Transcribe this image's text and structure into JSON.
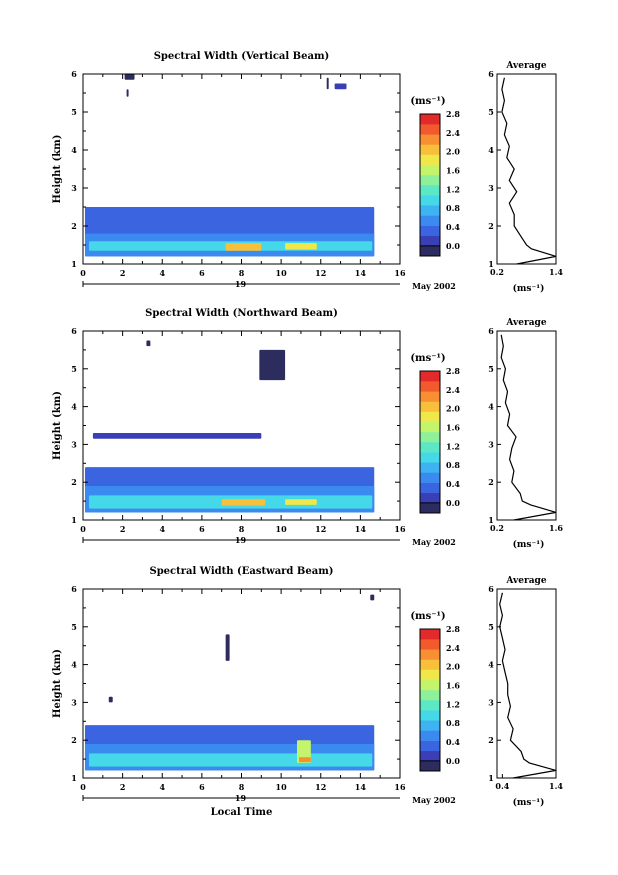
{
  "chart_data": [
    {
      "type": "heatmap",
      "title": "Spectral Width (Vertical Beam)",
      "xlabel": "",
      "ylabel": "Height (km)",
      "x_ticks": [
        0,
        2,
        4,
        6,
        8,
        10,
        12,
        14,
        16
      ],
      "y_ticks": [
        1,
        2,
        3,
        4,
        5,
        6
      ],
      "xlim": [
        0,
        16
      ],
      "ylim": [
        1,
        6
      ],
      "date_marker": "19",
      "date_label": "May 2002",
      "colorbar": {
        "unit_label": "(ms⁻¹)",
        "ticks": [
          "0.0",
          "0.4",
          "0.8",
          "1.2",
          "1.6",
          "2.0",
          "2.4",
          "2.8"
        ],
        "range": [
          0,
          3.0
        ]
      },
      "blocks": [
        {
          "x0": 0.1,
          "x1": 14.7,
          "y0": 1.2,
          "y1": 2.5,
          "v": 0.55
        },
        {
          "x0": 0.1,
          "x1": 14.7,
          "y0": 1.2,
          "y1": 1.8,
          "v": 0.85
        },
        {
          "x0": 0.3,
          "x1": 14.6,
          "y0": 1.35,
          "y1": 1.6,
          "v": 1.2
        },
        {
          "x0": 7.2,
          "x1": 9.0,
          "y0": 1.35,
          "y1": 1.55,
          "v": 2.3
        },
        {
          "x0": 10.2,
          "x1": 11.8,
          "y0": 1.38,
          "y1": 1.55,
          "v": 2.0
        },
        {
          "x0": 2.1,
          "x1": 2.6,
          "y0": 5.85,
          "y1": 6.0,
          "v": 0.2
        },
        {
          "x0": 2.2,
          "x1": 2.3,
          "y0": 5.4,
          "y1": 5.6,
          "v": 0.2
        },
        {
          "x0": 12.7,
          "x1": 13.3,
          "y0": 5.6,
          "y1": 5.75,
          "v": 0.3
        },
        {
          "x0": 12.3,
          "x1": 12.4,
          "y0": 5.6,
          "y1": 5.9,
          "v": 0.2
        }
      ],
      "average": {
        "title": "Average",
        "x_ticks": [
          "0.2",
          "1.4"
        ],
        "xlim": [
          0.2,
          1.4
        ],
        "unit_label": "(ms⁻¹)",
        "heights": [
          1.0,
          1.2,
          1.4,
          1.5,
          1.7,
          2.0,
          2.3,
          2.6,
          2.9,
          3.2,
          3.5,
          3.8,
          4.1,
          4.4,
          4.7,
          5.0,
          5.3,
          5.6,
          5.9
        ],
        "values": [
          0.6,
          1.4,
          0.9,
          0.8,
          0.7,
          0.55,
          0.55,
          0.45,
          0.6,
          0.45,
          0.55,
          0.4,
          0.45,
          0.35,
          0.4,
          0.3,
          0.35,
          0.3,
          0.35
        ]
      }
    },
    {
      "type": "heatmap",
      "title": "Spectral Width (Northward Beam)",
      "xlabel": "",
      "ylabel": "Height (km)",
      "x_ticks": [
        0,
        2,
        4,
        6,
        8,
        10,
        12,
        14,
        16
      ],
      "y_ticks": [
        1,
        2,
        3,
        4,
        5,
        6
      ],
      "xlim": [
        0,
        16
      ],
      "ylim": [
        1,
        6
      ],
      "date_marker": "19",
      "date_label": "May 2002",
      "colorbar": {
        "unit_label": "(ms⁻¹)",
        "ticks": [
          "0.0",
          "0.4",
          "0.8",
          "1.2",
          "1.6",
          "2.0",
          "2.4",
          "2.8"
        ],
        "range": [
          0,
          3.0
        ]
      },
      "blocks": [
        {
          "x0": 0.1,
          "x1": 14.7,
          "y0": 1.2,
          "y1": 2.4,
          "v": 0.45
        },
        {
          "x0": 0.1,
          "x1": 14.7,
          "y0": 1.2,
          "y1": 1.9,
          "v": 0.8
        },
        {
          "x0": 0.3,
          "x1": 14.6,
          "y0": 1.3,
          "y1": 1.65,
          "v": 1.2
        },
        {
          "x0": 7.0,
          "x1": 9.2,
          "y0": 1.38,
          "y1": 1.55,
          "v": 2.3
        },
        {
          "x0": 10.2,
          "x1": 11.8,
          "y0": 1.4,
          "y1": 1.55,
          "v": 2.1
        },
        {
          "x0": 0.5,
          "x1": 9.0,
          "y0": 3.15,
          "y1": 3.3,
          "v": 0.25
        },
        {
          "x0": 8.9,
          "x1": 10.2,
          "y0": 4.7,
          "y1": 5.5,
          "v": 0.2
        },
        {
          "x0": 3.2,
          "x1": 3.4,
          "y0": 5.6,
          "y1": 5.75,
          "v": 0.2
        }
      ],
      "average": {
        "title": "Average",
        "x_ticks": [
          "0.2",
          "1.6"
        ],
        "xlim": [
          0.2,
          1.6
        ],
        "unit_label": "(ms⁻¹)",
        "heights": [
          1.0,
          1.2,
          1.4,
          1.5,
          1.7,
          2.0,
          2.3,
          2.6,
          2.9,
          3.2,
          3.5,
          3.8,
          4.1,
          4.4,
          4.7,
          5.0,
          5.3,
          5.6,
          5.9
        ],
        "values": [
          0.6,
          1.6,
          1.0,
          0.8,
          0.75,
          0.55,
          0.6,
          0.5,
          0.55,
          0.65,
          0.45,
          0.5,
          0.4,
          0.45,
          0.35,
          0.4,
          0.3,
          0.35,
          0.3
        ]
      }
    },
    {
      "type": "heatmap",
      "title": "Spectral Width (Eastward Beam)",
      "xlabel": "Local Time",
      "ylabel": "Height (km)",
      "x_ticks": [
        0,
        2,
        4,
        6,
        8,
        10,
        12,
        14,
        16
      ],
      "y_ticks": [
        1,
        2,
        3,
        4,
        5,
        6
      ],
      "xlim": [
        0,
        16
      ],
      "ylim": [
        1,
        6
      ],
      "date_marker": "19",
      "date_label": "May 2002",
      "colorbar": {
        "unit_label": "(ms⁻¹)",
        "ticks": [
          "0.0",
          "0.4",
          "0.8",
          "1.2",
          "1.6",
          "2.0",
          "2.4",
          "2.8"
        ],
        "range": [
          0,
          3.0
        ]
      },
      "blocks": [
        {
          "x0": 0.1,
          "x1": 14.7,
          "y0": 1.2,
          "y1": 2.4,
          "v": 0.5
        },
        {
          "x0": 0.1,
          "x1": 14.7,
          "y0": 1.2,
          "y1": 1.9,
          "v": 0.8
        },
        {
          "x0": 0.3,
          "x1": 14.6,
          "y0": 1.3,
          "y1": 1.65,
          "v": 1.2
        },
        {
          "x0": 10.8,
          "x1": 11.5,
          "y0": 1.4,
          "y1": 2.0,
          "v": 1.8
        },
        {
          "x0": 10.9,
          "x1": 11.5,
          "y0": 1.42,
          "y1": 1.55,
          "v": 2.5
        },
        {
          "x0": 7.2,
          "x1": 7.4,
          "y0": 4.1,
          "y1": 4.8,
          "v": 0.2
        },
        {
          "x0": 1.3,
          "x1": 1.5,
          "y0": 3.0,
          "y1": 3.15,
          "v": 0.2
        },
        {
          "x0": 14.5,
          "x1": 14.7,
          "y0": 5.7,
          "y1": 5.85,
          "v": 0.2
        }
      ],
      "average": {
        "title": "Average",
        "x_ticks": [
          "0.4",
          "1.4"
        ],
        "xlim": [
          0.3,
          1.4
        ],
        "unit_label": "(ms⁻¹)",
        "heights": [
          1.0,
          1.2,
          1.4,
          1.5,
          1.7,
          2.0,
          2.3,
          2.6,
          2.9,
          3.2,
          3.5,
          3.8,
          4.1,
          4.4,
          4.7,
          5.0,
          5.3,
          5.6,
          5.9
        ],
        "values": [
          0.6,
          1.4,
          0.9,
          0.8,
          0.75,
          0.55,
          0.6,
          0.5,
          0.55,
          0.5,
          0.5,
          0.45,
          0.4,
          0.45,
          0.4,
          0.35,
          0.4,
          0.35,
          0.4
        ]
      }
    }
  ],
  "colormap": [
    "#2c2c5e",
    "#3a3fb5",
    "#3b64e0",
    "#3a8af0",
    "#3db3f2",
    "#44d8e8",
    "#5ce8c4",
    "#8ef19a",
    "#c4f46a",
    "#f0e84a",
    "#f8c03a",
    "#f88f32",
    "#f25a2e",
    "#e22a2a"
  ]
}
